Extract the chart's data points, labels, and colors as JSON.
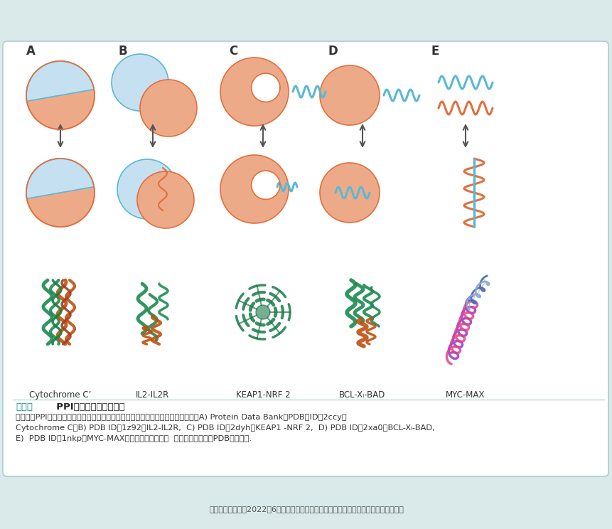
{
  "bg_color": "#daeaea",
  "panel_bg": "#ffffff",
  "orange": "#EDAA88",
  "orange_edge": "#E07040",
  "blue": "#C5E0F0",
  "blue_edge": "#5BB8D4",
  "dark_blue": "#5BB8D4",
  "arrow_color": "#555555",
  "title_color": "#1a9090",
  "section_labels": [
    "A",
    "B",
    "C",
    "D",
    "E"
  ],
  "protein_labels": [
    "Cytochrome C’",
    "IL2-IL2R",
    "KEAP1-NRF 2",
    "BCL-Xₗ-BAD",
    "MYC-MAX"
  ],
  "footer": "実験医学別冊　　2022年6月発行「創薬研究のためのスクリーニング学実践テキスト」"
}
